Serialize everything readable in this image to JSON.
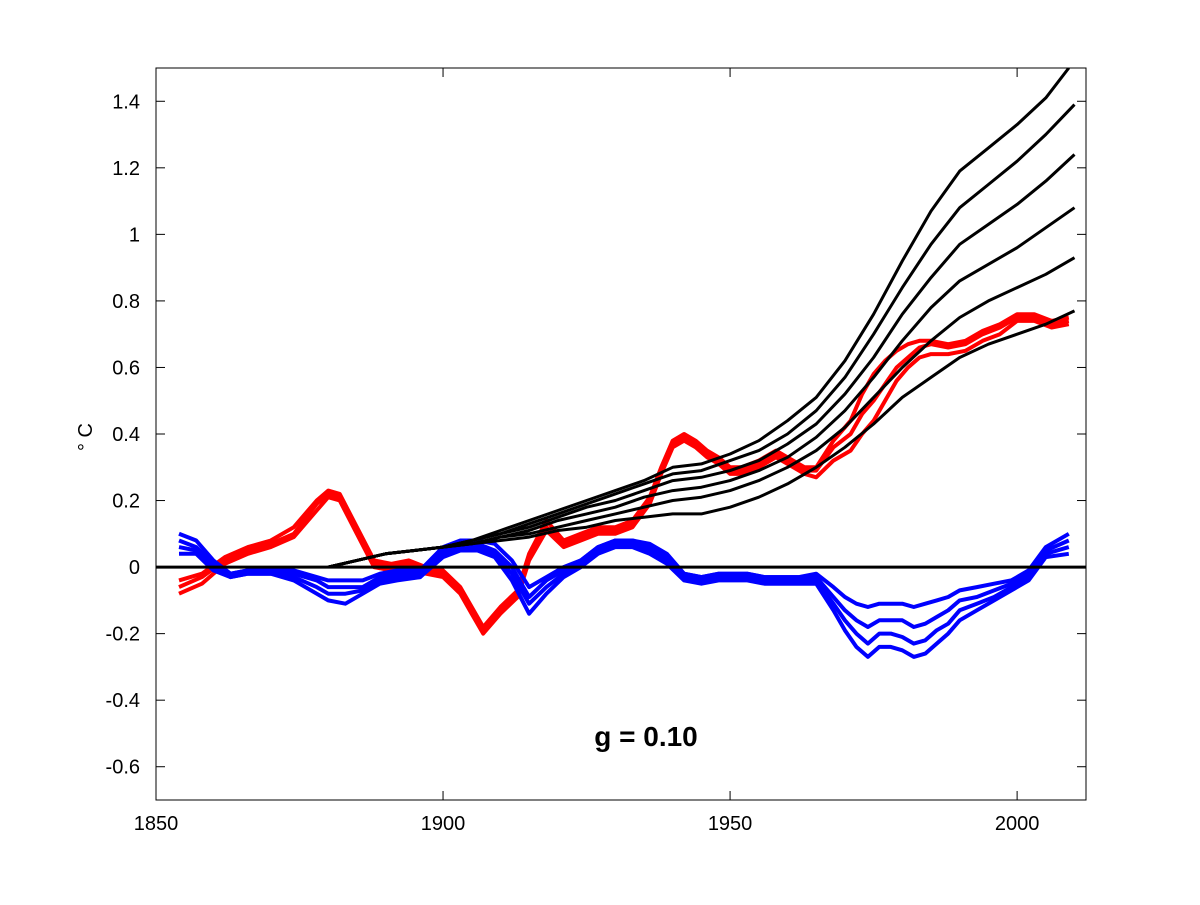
{
  "chart_data": {
    "type": "line",
    "title": "",
    "xlabel": "",
    "ylabel": "° C",
    "annotation": "g = 0.10",
    "xlim": [
      1850,
      2012
    ],
    "ylim": [
      -0.7,
      1.5
    ],
    "xticks": [
      1850,
      1900,
      1950,
      2000
    ],
    "xtick_labels": [
      "1850",
      "1900",
      "1950",
      "2000"
    ],
    "yticks": [
      -0.6,
      -0.4,
      -0.2,
      0,
      0.2,
      0.4,
      0.6,
      0.8,
      1,
      1.2,
      1.4
    ],
    "ytick_labels": [
      "-0.6",
      "-0.4",
      "-0.2",
      "0",
      "0.2",
      "0.4",
      "0.6",
      "0.8",
      "1",
      "1.2",
      "1.4"
    ],
    "grid": false,
    "legend": "none",
    "zero_line": 0,
    "colors": {
      "red": "#ff0000",
      "blue": "#0000ff",
      "black": "#000000"
    },
    "series": [
      {
        "color": "#ff0000",
        "x": [
          1854,
          1858,
          1862,
          1866,
          1870,
          1874,
          1878,
          1880,
          1882,
          1885,
          1888,
          1891,
          1894,
          1897,
          1900,
          1903,
          1905,
          1907,
          1910,
          1913,
          1915,
          1918,
          1921,
          1924,
          1927,
          1930,
          1933,
          1936,
          1938,
          1940,
          1942,
          1944,
          1946,
          1948,
          1950,
          1952,
          1955,
          1958,
          1960,
          1963,
          1965,
          1968,
          1971,
          1973,
          1975,
          1977,
          1979,
          1981,
          1983,
          1985,
          1988,
          1991,
          1994,
          1997,
          2000,
          2003,
          2006,
          2009
        ],
        "y": [
          -0.08,
          -0.05,
          0.01,
          0.04,
          0.06,
          0.09,
          0.17,
          0.21,
          0.2,
          0.1,
          0,
          -0.01,
          0,
          -0.02,
          -0.03,
          -0.08,
          -0.14,
          -0.2,
          -0.14,
          -0.09,
          0.02,
          0.11,
          0.06,
          0.08,
          0.1,
          0.1,
          0.12,
          0.19,
          0.28,
          0.36,
          0.38,
          0.36,
          0.33,
          0.31,
          0.28,
          0.28,
          0.3,
          0.33,
          0.31,
          0.28,
          0.27,
          0.32,
          0.35,
          0.4,
          0.44,
          0.5,
          0.56,
          0.6,
          0.63,
          0.64,
          0.64,
          0.65,
          0.68,
          0.7,
          0.74,
          0.74,
          0.72,
          0.73
        ]
      },
      {
        "color": "#ff0000",
        "x": [
          1854,
          1858,
          1862,
          1866,
          1870,
          1874,
          1878,
          1880,
          1882,
          1885,
          1888,
          1891,
          1894,
          1897,
          1900,
          1903,
          1905,
          1907,
          1910,
          1913,
          1915,
          1918,
          1921,
          1924,
          1927,
          1930,
          1933,
          1936,
          1938,
          1940,
          1942,
          1944,
          1946,
          1948,
          1950,
          1952,
          1955,
          1958,
          1960,
          1963,
          1965,
          1968,
          1971,
          1973,
          1975,
          1977,
          1979,
          1981,
          1983,
          1985,
          1988,
          1991,
          1994,
          1997,
          2000,
          2003,
          2006,
          2009
        ],
        "y": [
          -0.06,
          -0.03,
          0.02,
          0.05,
          0.07,
          0.1,
          0.19,
          0.22,
          0.21,
          0.11,
          0.01,
          0,
          0.01,
          -0.01,
          -0.02,
          -0.07,
          -0.13,
          -0.19,
          -0.13,
          -0.08,
          0.03,
          0.12,
          0.07,
          0.09,
          0.11,
          0.11,
          0.13,
          0.2,
          0.29,
          0.37,
          0.39,
          0.37,
          0.34,
          0.32,
          0.29,
          0.29,
          0.31,
          0.34,
          0.32,
          0.29,
          0.29,
          0.36,
          0.4,
          0.46,
          0.5,
          0.55,
          0.6,
          0.63,
          0.66,
          0.67,
          0.66,
          0.67,
          0.7,
          0.72,
          0.75,
          0.75,
          0.73,
          0.74
        ]
      },
      {
        "color": "#ff0000",
        "x": [
          1854,
          1858,
          1862,
          1866,
          1870,
          1874,
          1878,
          1880,
          1882,
          1885,
          1888,
          1891,
          1894,
          1897,
          1900,
          1903,
          1905,
          1907,
          1910,
          1913,
          1915,
          1918,
          1921,
          1924,
          1927,
          1930,
          1933,
          1936,
          1938,
          1940,
          1942,
          1944,
          1946,
          1948,
          1950,
          1952,
          1955,
          1958,
          1960,
          1963,
          1965,
          1968,
          1971,
          1973,
          1975,
          1977,
          1979,
          1981,
          1983,
          1985,
          1988,
          1991,
          1994,
          1997,
          2000,
          2003,
          2006,
          2009
        ],
        "y": [
          -0.04,
          -0.02,
          0.03,
          0.06,
          0.08,
          0.12,
          0.2,
          0.23,
          0.22,
          0.12,
          0.02,
          0.01,
          0.02,
          0,
          -0.01,
          -0.06,
          -0.12,
          -0.18,
          -0.12,
          -0.07,
          0.04,
          0.14,
          0.08,
          0.1,
          0.12,
          0.12,
          0.14,
          0.21,
          0.3,
          0.38,
          0.4,
          0.38,
          0.35,
          0.33,
          0.3,
          0.3,
          0.32,
          0.35,
          0.33,
          0.3,
          0.3,
          0.38,
          0.44,
          0.52,
          0.58,
          0.62,
          0.65,
          0.67,
          0.68,
          0.68,
          0.67,
          0.68,
          0.71,
          0.73,
          0.76,
          0.76,
          0.74,
          0.75
        ]
      },
      {
        "color": "#0000ff",
        "x": [
          1854,
          1857,
          1860,
          1863,
          1866,
          1870,
          1874,
          1878,
          1880,
          1883,
          1886,
          1889,
          1892,
          1896,
          1900,
          1903,
          1906,
          1909,
          1912,
          1915,
          1918,
          1921,
          1924,
          1927,
          1930,
          1933,
          1936,
          1939,
          1942,
          1945,
          1948,
          1950,
          1953,
          1956,
          1959,
          1962,
          1965,
          1968,
          1970,
          1972,
          1974,
          1976,
          1978,
          1980,
          1982,
          1984,
          1986,
          1988,
          1990,
          1993,
          1996,
          1999,
          2002,
          2005,
          2009
        ],
        "y": [
          0.1,
          0.08,
          0.02,
          -0.02,
          -0.01,
          -0.01,
          -0.01,
          -0.03,
          -0.04,
          -0.04,
          -0.04,
          -0.02,
          -0.01,
          -0.01,
          0.06,
          0.08,
          0.08,
          0.07,
          0.02,
          -0.06,
          -0.03,
          0,
          0.02,
          0.06,
          0.08,
          0.08,
          0.07,
          0.04,
          -0.02,
          -0.03,
          -0.02,
          -0.02,
          -0.02,
          -0.03,
          -0.03,
          -0.03,
          -0.02,
          -0.06,
          -0.09,
          -0.11,
          -0.12,
          -0.11,
          -0.11,
          -0.11,
          -0.12,
          -0.11,
          -0.1,
          -0.09,
          -0.07,
          -0.06,
          -0.05,
          -0.04,
          -0.01,
          0.06,
          0.1
        ]
      },
      {
        "color": "#0000ff",
        "x": [
          1854,
          1857,
          1860,
          1863,
          1866,
          1870,
          1874,
          1878,
          1880,
          1883,
          1886,
          1889,
          1892,
          1896,
          1900,
          1903,
          1906,
          1909,
          1912,
          1915,
          1918,
          1921,
          1924,
          1927,
          1930,
          1933,
          1936,
          1939,
          1942,
          1945,
          1948,
          1950,
          1953,
          1956,
          1959,
          1962,
          1965,
          1968,
          1970,
          1972,
          1974,
          1976,
          1978,
          1980,
          1982,
          1984,
          1986,
          1988,
          1990,
          1993,
          1996,
          1999,
          2002,
          2005,
          2009
        ],
        "y": [
          0.08,
          0.06,
          0.01,
          -0.02,
          -0.01,
          -0.01,
          -0.02,
          -0.04,
          -0.06,
          -0.06,
          -0.06,
          -0.03,
          -0.02,
          -0.02,
          0.05,
          0.07,
          0.07,
          0.05,
          0,
          -0.09,
          -0.04,
          -0.01,
          0.02,
          0.06,
          0.08,
          0.08,
          0.06,
          0.03,
          -0.02,
          -0.03,
          -0.02,
          -0.02,
          -0.02,
          -0.03,
          -0.03,
          -0.03,
          -0.03,
          -0.09,
          -0.13,
          -0.16,
          -0.18,
          -0.16,
          -0.16,
          -0.16,
          -0.18,
          -0.17,
          -0.15,
          -0.13,
          -0.1,
          -0.09,
          -0.07,
          -0.05,
          -0.02,
          0.05,
          0.08
        ]
      },
      {
        "color": "#0000ff",
        "x": [
          1854,
          1857,
          1860,
          1863,
          1866,
          1870,
          1874,
          1878,
          1880,
          1883,
          1886,
          1889,
          1892,
          1896,
          1900,
          1903,
          1906,
          1909,
          1912,
          1915,
          1918,
          1921,
          1924,
          1927,
          1930,
          1933,
          1936,
          1939,
          1942,
          1945,
          1948,
          1950,
          1953,
          1956,
          1959,
          1962,
          1965,
          1968,
          1970,
          1972,
          1974,
          1976,
          1978,
          1980,
          1982,
          1984,
          1986,
          1988,
          1990,
          1993,
          1996,
          1999,
          2002,
          2005,
          2009
        ],
        "y": [
          0.06,
          0.05,
          0,
          -0.03,
          -0.02,
          -0.02,
          -0.03,
          -0.06,
          -0.08,
          -0.08,
          -0.07,
          -0.04,
          -0.03,
          -0.03,
          0.04,
          0.06,
          0.06,
          0.04,
          -0.02,
          -0.11,
          -0.06,
          -0.02,
          0.01,
          0.05,
          0.07,
          0.07,
          0.05,
          0.02,
          -0.03,
          -0.04,
          -0.03,
          -0.03,
          -0.03,
          -0.04,
          -0.04,
          -0.04,
          -0.04,
          -0.11,
          -0.16,
          -0.2,
          -0.23,
          -0.2,
          -0.2,
          -0.21,
          -0.23,
          -0.22,
          -0.19,
          -0.17,
          -0.13,
          -0.11,
          -0.09,
          -0.06,
          -0.03,
          0.04,
          0.06
        ]
      },
      {
        "color": "#0000ff",
        "x": [
          1854,
          1857,
          1860,
          1863,
          1866,
          1870,
          1874,
          1878,
          1880,
          1883,
          1886,
          1889,
          1892,
          1896,
          1900,
          1903,
          1906,
          1909,
          1912,
          1915,
          1918,
          1921,
          1924,
          1927,
          1930,
          1933,
          1936,
          1939,
          1942,
          1945,
          1948,
          1950,
          1953,
          1956,
          1959,
          1962,
          1965,
          1968,
          1970,
          1972,
          1974,
          1976,
          1978,
          1980,
          1982,
          1984,
          1986,
          1988,
          1990,
          1993,
          1996,
          1999,
          2002,
          2005,
          2009
        ],
        "y": [
          0.04,
          0.04,
          -0.01,
          -0.03,
          -0.02,
          -0.02,
          -0.04,
          -0.08,
          -0.1,
          -0.11,
          -0.08,
          -0.05,
          -0.04,
          -0.03,
          0.03,
          0.05,
          0.05,
          0.03,
          -0.04,
          -0.14,
          -0.08,
          -0.03,
          0,
          0.04,
          0.06,
          0.06,
          0.04,
          0.01,
          -0.04,
          -0.05,
          -0.04,
          -0.04,
          -0.04,
          -0.05,
          -0.05,
          -0.05,
          -0.05,
          -0.13,
          -0.19,
          -0.24,
          -0.27,
          -0.24,
          -0.24,
          -0.25,
          -0.27,
          -0.26,
          -0.23,
          -0.2,
          -0.16,
          -0.13,
          -0.1,
          -0.07,
          -0.04,
          0.03,
          0.04
        ]
      },
      {
        "color": "#000000",
        "x": [
          1880,
          1885,
          1890,
          1895,
          1900,
          1905,
          1910,
          1915,
          1920,
          1925,
          1930,
          1935,
          1940,
          1945,
          1950,
          1955,
          1960,
          1965,
          1970,
          1975,
          1980,
          1985,
          1990,
          1995,
          2000,
          2005,
          2009
        ],
        "y": [
          0,
          0.02,
          0.04,
          0.05,
          0.06,
          0.08,
          0.11,
          0.14,
          0.17,
          0.2,
          0.23,
          0.26,
          0.3,
          0.31,
          0.34,
          0.38,
          0.44,
          0.51,
          0.62,
          0.76,
          0.92,
          1.07,
          1.19,
          1.26,
          1.33,
          1.41,
          1.5
        ]
      },
      {
        "color": "#000000",
        "x": [
          1880,
          1885,
          1890,
          1895,
          1900,
          1905,
          1910,
          1915,
          1920,
          1925,
          1930,
          1935,
          1940,
          1945,
          1950,
          1955,
          1960,
          1965,
          1970,
          1975,
          1980,
          1985,
          1990,
          1995,
          2000,
          2005,
          2010
        ],
        "y": [
          0,
          0.02,
          0.04,
          0.05,
          0.06,
          0.08,
          0.1,
          0.13,
          0.16,
          0.19,
          0.22,
          0.25,
          0.28,
          0.29,
          0.32,
          0.35,
          0.4,
          0.47,
          0.57,
          0.7,
          0.84,
          0.97,
          1.08,
          1.15,
          1.22,
          1.3,
          1.39
        ]
      },
      {
        "color": "#000000",
        "x": [
          1880,
          1885,
          1890,
          1895,
          1900,
          1905,
          1910,
          1915,
          1920,
          1925,
          1930,
          1935,
          1940,
          1945,
          1950,
          1955,
          1960,
          1965,
          1970,
          1975,
          1980,
          1985,
          1990,
          1995,
          2000,
          2005,
          2010
        ],
        "y": [
          0,
          0.02,
          0.04,
          0.05,
          0.06,
          0.08,
          0.1,
          0.12,
          0.15,
          0.18,
          0.2,
          0.23,
          0.26,
          0.27,
          0.29,
          0.32,
          0.37,
          0.43,
          0.52,
          0.63,
          0.76,
          0.87,
          0.97,
          1.03,
          1.09,
          1.16,
          1.24
        ]
      },
      {
        "color": "#000000",
        "x": [
          1880,
          1885,
          1890,
          1895,
          1900,
          1905,
          1910,
          1915,
          1920,
          1925,
          1930,
          1935,
          1940,
          1945,
          1950,
          1955,
          1960,
          1965,
          1970,
          1975,
          1980,
          1985,
          1990,
          1995,
          2000,
          2005,
          2010
        ],
        "y": [
          0,
          0.02,
          0.04,
          0.05,
          0.06,
          0.07,
          0.09,
          0.11,
          0.14,
          0.16,
          0.18,
          0.21,
          0.23,
          0.24,
          0.26,
          0.29,
          0.33,
          0.39,
          0.47,
          0.57,
          0.68,
          0.78,
          0.86,
          0.91,
          0.96,
          1.02,
          1.08
        ]
      },
      {
        "color": "#000000",
        "x": [
          1880,
          1885,
          1890,
          1895,
          1900,
          1905,
          1910,
          1915,
          1920,
          1925,
          1930,
          1935,
          1940,
          1945,
          1950,
          1955,
          1960,
          1965,
          1970,
          1975,
          1980,
          1985,
          1990,
          1995,
          2000,
          2005,
          2010
        ],
        "y": [
          0,
          0.02,
          0.04,
          0.05,
          0.06,
          0.07,
          0.09,
          0.1,
          0.12,
          0.14,
          0.16,
          0.18,
          0.2,
          0.21,
          0.23,
          0.26,
          0.3,
          0.35,
          0.42,
          0.51,
          0.6,
          0.68,
          0.75,
          0.8,
          0.84,
          0.88,
          0.93
        ]
      },
      {
        "color": "#000000",
        "x": [
          1880,
          1885,
          1890,
          1895,
          1900,
          1905,
          1910,
          1915,
          1920,
          1925,
          1930,
          1935,
          1940,
          1945,
          1950,
          1955,
          1960,
          1965,
          1970,
          1975,
          1980,
          1985,
          1990,
          1995,
          2000,
          2005,
          2010
        ],
        "y": [
          0,
          0.02,
          0.04,
          0.05,
          0.06,
          0.07,
          0.08,
          0.09,
          0.11,
          0.12,
          0.14,
          0.15,
          0.16,
          0.16,
          0.18,
          0.21,
          0.25,
          0.3,
          0.36,
          0.43,
          0.51,
          0.57,
          0.63,
          0.67,
          0.7,
          0.73,
          0.77
        ]
      }
    ]
  }
}
